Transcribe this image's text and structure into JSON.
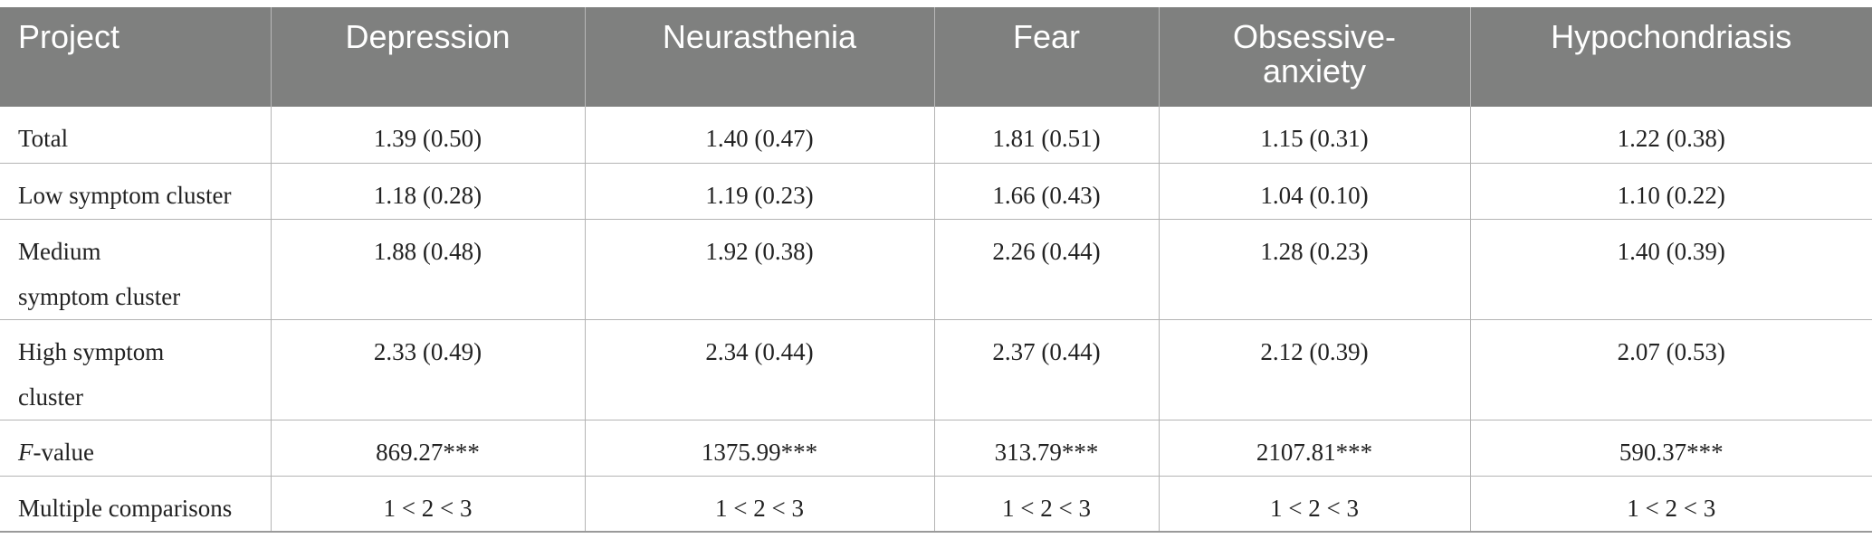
{
  "table": {
    "headers": [
      "Project",
      "Depression",
      "Neurasthenia",
      "Fear",
      "Obsessive-anxiety",
      "Hypochondriasis"
    ],
    "header_obsessive_line1": "Obsessive-",
    "header_obsessive_line2": "anxiety",
    "rows": [
      {
        "label": "Total",
        "values": [
          "1.39 (0.50)",
          "1.40 (0.47)",
          "1.81 (0.51)",
          "1.15 (0.31)",
          "1.22 (0.38)"
        ]
      },
      {
        "label": "Low symptom cluster",
        "values": [
          "1.18 (0.28)",
          "1.19 (0.23)",
          "1.66 (0.43)",
          "1.04 (0.10)",
          "1.10 (0.22)"
        ]
      },
      {
        "label": "Medium symptom cluster",
        "values": [
          "1.88 (0.48)",
          "1.92 (0.38)",
          "2.26 (0.44)",
          "1.28 (0.23)",
          "1.40 (0.39)"
        ]
      },
      {
        "label": "High symptom cluster",
        "values": [
          "2.33 (0.49)",
          "2.34 (0.44)",
          "2.37 (0.44)",
          "2.12 (0.39)",
          "2.07 (0.53)"
        ]
      },
      {
        "label_italic": "F",
        "label_rest": "-value",
        "values": [
          "869.27***",
          "1375.99***",
          "313.79***",
          "2107.81***",
          "590.37***"
        ]
      },
      {
        "label": "Multiple comparisons",
        "values": [
          "1 < 2 < 3",
          "1 < 2 < 3",
          "1 < 2 < 3",
          "1 < 2 < 3",
          "1 < 2 < 3"
        ]
      }
    ]
  }
}
